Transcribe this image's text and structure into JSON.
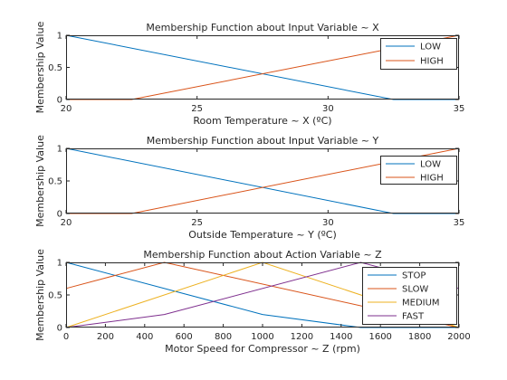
{
  "chart_data": [
    {
      "type": "line",
      "title": "Membership Function about Input Variable ~ X",
      "xlabel": "Room Temperature ~ X (ºC)",
      "ylabel": "Membership Value",
      "xlim": [
        20,
        35
      ],
      "ylim": [
        0,
        1
      ],
      "xticks": [
        "20",
        "25",
        "30",
        "35"
      ],
      "yticks": [
        "0",
        "0.5",
        "1"
      ],
      "legend_position": "top-right",
      "series": [
        {
          "name": "LOW",
          "color": "#0072BD",
          "x": [
            20,
            32.5,
            35
          ],
          "y": [
            1,
            0,
            0
          ]
        },
        {
          "name": "HIGH",
          "color": "#D95319",
          "x": [
            20,
            22.5,
            35
          ],
          "y": [
            0,
            0,
            1
          ]
        }
      ]
    },
    {
      "type": "line",
      "title": "Membership Function about Input Variable ~ Y",
      "xlabel": "Outside Temperature ~ Y (ºC)",
      "ylabel": "Membership Value",
      "xlim": [
        20,
        35
      ],
      "ylim": [
        0,
        1
      ],
      "xticks": [
        "20",
        "25",
        "30",
        "35"
      ],
      "yticks": [
        "0",
        "0.5",
        "1"
      ],
      "legend_position": "top-right",
      "series": [
        {
          "name": "LOW",
          "color": "#0072BD",
          "x": [
            20,
            32.5,
            35
          ],
          "y": [
            1,
            0,
            0
          ]
        },
        {
          "name": "HIGH",
          "color": "#D95319",
          "x": [
            20,
            22.5,
            35
          ],
          "y": [
            0,
            0,
            1
          ]
        }
      ]
    },
    {
      "type": "line",
      "title": "Membership Function about Action Variable ~ Z",
      "xlabel": "Motor Speed for Compressor ~ Z (rpm)",
      "ylabel": "Membership Value",
      "xlim": [
        0,
        2000
      ],
      "ylim": [
        0,
        1
      ],
      "xticks": [
        "0",
        "200",
        "400",
        "600",
        "800",
        "1000",
        "1200",
        "1400",
        "1600",
        "1800",
        "2000"
      ],
      "yticks": [
        "0",
        "0.5",
        "1"
      ],
      "legend_position": "top-right",
      "series": [
        {
          "name": "STOP",
          "color": "#0072BD",
          "x": [
            0,
            1000,
            1500,
            2000
          ],
          "y": [
            1,
            0.2,
            0,
            0
          ]
        },
        {
          "name": "SLOW",
          "color": "#D95319",
          "x": [
            0,
            500,
            2000
          ],
          "y": [
            0.6,
            1,
            0
          ]
        },
        {
          "name": "MEDIUM",
          "color": "#EDB120",
          "x": [
            0,
            1000,
            2000
          ],
          "y": [
            0,
            1,
            0
          ]
        },
        {
          "name": "FAST",
          "color": "#7E2F8E",
          "x": [
            0,
            500,
            1500,
            2000
          ],
          "y": [
            0,
            0.2,
            1,
            0.6
          ]
        }
      ]
    }
  ]
}
